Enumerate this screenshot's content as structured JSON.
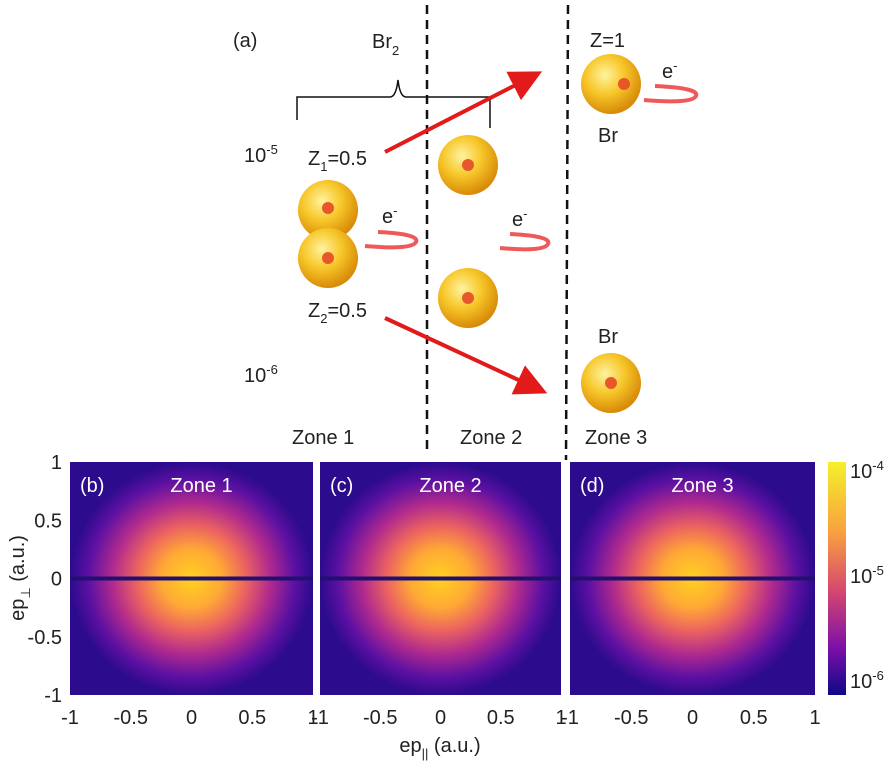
{
  "panel_a": {
    "label": "(a)",
    "molecule": {
      "base": "Br",
      "sub": "2"
    },
    "z1": {
      "base": "Z",
      "sub": "1",
      "rest": "=0.5"
    },
    "z2": {
      "base": "Z",
      "sub": "2",
      "rest": "=0.5"
    },
    "z_atom": "Z=1",
    "atom_top": "Br",
    "atom_bottom": "Br",
    "electron": {
      "base": "e",
      "sup": "-"
    },
    "levels": [
      {
        "base": "10",
        "sup": "-5"
      },
      {
        "base": "10",
        "sup": "-6"
      }
    ],
    "zones": [
      "Zone 1",
      "Zone 2",
      "Zone 3"
    ]
  },
  "panels": [
    {
      "label": "(b)",
      "title": "Zone 1"
    },
    {
      "label": "(c)",
      "title": "Zone 2"
    },
    {
      "label": "(d)",
      "title": "Zone 3"
    }
  ],
  "y_axis": {
    "label": {
      "base": "ep",
      "sub": "⊥",
      "rest": " (a.u.)"
    },
    "ticks": [
      "1",
      "0.5",
      "0",
      "-0.5",
      "-1"
    ]
  },
  "x_axis": {
    "label": {
      "base": "ep",
      "sub": "||",
      "rest": " (a.u.)"
    },
    "ticks": [
      "-1",
      "-0.5",
      "0",
      "0.5",
      "1"
    ]
  },
  "colorbar": {
    "ticks": [
      {
        "base": "10",
        "sup": "-4"
      },
      {
        "base": "10",
        "sup": "-5"
      },
      {
        "base": "10",
        "sup": "-6"
      }
    ]
  }
}
